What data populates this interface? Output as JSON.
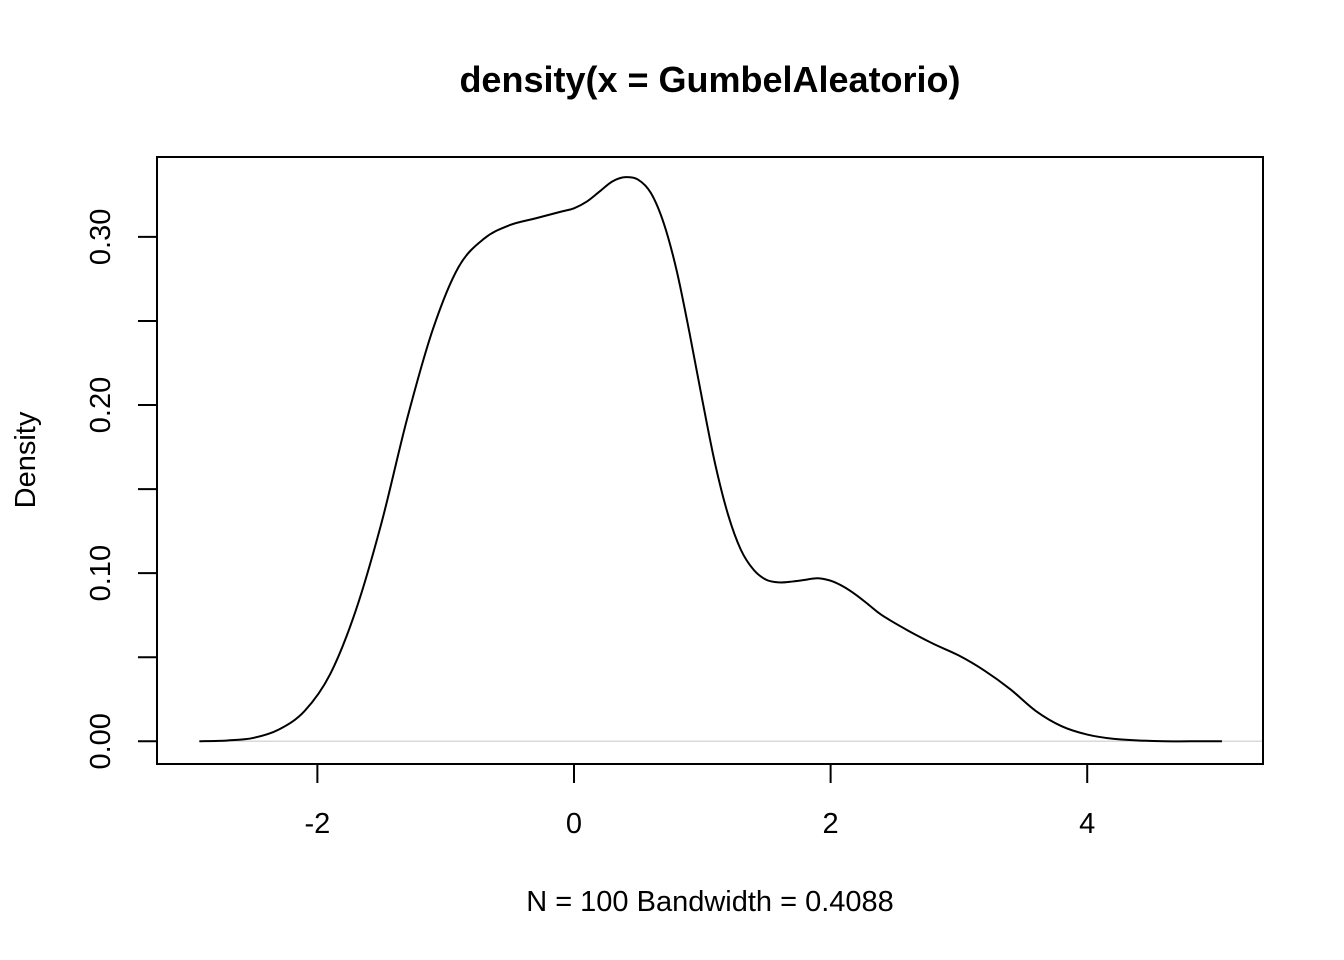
{
  "chart_data": {
    "type": "line",
    "title": "density(x = GumbelAleatorio)",
    "xlabel": "N = 100   Bandwidth = 0.4088",
    "ylabel": "Density",
    "xlim": [
      -3.25,
      5.37
    ],
    "ylim": [
      -0.0135,
      0.3475
    ],
    "x_ticks": [
      -2,
      0,
      2,
      4
    ],
    "x_tick_labels": [
      "-2",
      "0",
      "2",
      "4"
    ],
    "y_ticks": [
      0.0,
      0.05,
      0.1,
      0.15,
      0.2,
      0.25,
      0.3
    ],
    "y_tick_labels": [
      "0.00",
      "",
      "0.10",
      "",
      "0.20",
      "",
      "0.30"
    ],
    "baseline": 0,
    "grid": false,
    "series": [
      {
        "name": "density",
        "color": "#000000",
        "x": [
          -2.92,
          -2.7,
          -2.5,
          -2.3,
          -2.1,
          -1.9,
          -1.7,
          -1.5,
          -1.3,
          -1.1,
          -0.9,
          -0.7,
          -0.5,
          -0.3,
          -0.1,
          0.0,
          0.1,
          0.2,
          0.3,
          0.4,
          0.5,
          0.6,
          0.7,
          0.8,
          0.9,
          1.0,
          1.1,
          1.2,
          1.3,
          1.4,
          1.5,
          1.6,
          1.7,
          1.8,
          1.9,
          2.0,
          2.1,
          2.2,
          2.3,
          2.4,
          2.6,
          2.8,
          3.0,
          3.2,
          3.4,
          3.6,
          3.8,
          4.0,
          4.2,
          4.4,
          4.6,
          4.8,
          5.05
        ],
        "y": [
          0.0,
          0.0005,
          0.002,
          0.007,
          0.018,
          0.04,
          0.078,
          0.13,
          0.192,
          0.245,
          0.282,
          0.299,
          0.307,
          0.311,
          0.315,
          0.317,
          0.321,
          0.327,
          0.333,
          0.3355,
          0.334,
          0.326,
          0.308,
          0.28,
          0.243,
          0.203,
          0.165,
          0.135,
          0.114,
          0.102,
          0.096,
          0.0945,
          0.095,
          0.096,
          0.097,
          0.0955,
          0.092,
          0.087,
          0.081,
          0.075,
          0.066,
          0.058,
          0.051,
          0.042,
          0.031,
          0.018,
          0.009,
          0.004,
          0.0015,
          0.0005,
          0.0,
          0.0,
          0.0
        ]
      }
    ]
  }
}
